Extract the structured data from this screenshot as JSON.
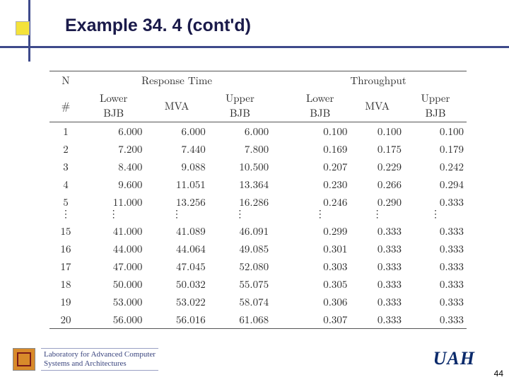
{
  "title": "Example 34. 4 (cont'd)",
  "decor": {
    "square_color": "#f4e23a",
    "line_color": "#3e4a8b",
    "title_color": "#1a1a4a"
  },
  "table": {
    "head": {
      "n": "N",
      "rt": "Response Time",
      "tp": "Throughput",
      "hash": "#",
      "sub": {
        "lower_bjb": "Lower\nBJB",
        "mva": "MVA",
        "upper_bjb": "Upper\nBJB"
      }
    },
    "rows_top": [
      {
        "n": "1",
        "rt_l": "6.000",
        "rt_m": "6.000",
        "rt_u": "6.000",
        "tp_l": "0.100",
        "tp_m": "0.100",
        "tp_u": "0.100"
      },
      {
        "n": "2",
        "rt_l": "7.200",
        "rt_m": "7.440",
        "rt_u": "7.800",
        "tp_l": "0.169",
        "tp_m": "0.175",
        "tp_u": "0.179"
      },
      {
        "n": "3",
        "rt_l": "8.400",
        "rt_m": "9.088",
        "rt_u": "10.500",
        "tp_l": "0.207",
        "tp_m": "0.229",
        "tp_u": "0.242"
      },
      {
        "n": "4",
        "rt_l": "9.600",
        "rt_m": "11.051",
        "rt_u": "13.364",
        "tp_l": "0.230",
        "tp_m": "0.266",
        "tp_u": "0.294"
      },
      {
        "n": "5",
        "rt_l": "11.000",
        "rt_m": "13.256",
        "rt_u": "16.286",
        "tp_l": "0.246",
        "tp_m": "0.290",
        "tp_u": "0.333"
      }
    ],
    "rows_bottom": [
      {
        "n": "15",
        "rt_l": "41.000",
        "rt_m": "41.089",
        "rt_u": "46.091",
        "tp_l": "0.299",
        "tp_m": "0.333",
        "tp_u": "0.333"
      },
      {
        "n": "16",
        "rt_l": "44.000",
        "rt_m": "44.064",
        "rt_u": "49.085",
        "tp_l": "0.301",
        "tp_m": "0.333",
        "tp_u": "0.333"
      },
      {
        "n": "17",
        "rt_l": "47.000",
        "rt_m": "47.045",
        "rt_u": "52.080",
        "tp_l": "0.303",
        "tp_m": "0.333",
        "tp_u": "0.333"
      },
      {
        "n": "18",
        "rt_l": "50.000",
        "rt_m": "50.032",
        "rt_u": "55.075",
        "tp_l": "0.305",
        "tp_m": "0.333",
        "tp_u": "0.333"
      },
      {
        "n": "19",
        "rt_l": "53.000",
        "rt_m": "53.022",
        "rt_u": "58.074",
        "tp_l": "0.306",
        "tp_m": "0.333",
        "tp_u": "0.333"
      },
      {
        "n": "20",
        "rt_l": "56.000",
        "rt_m": "56.016",
        "rt_u": "61.068",
        "tp_l": "0.307",
        "tp_m": "0.333",
        "tp_u": "0.333"
      }
    ],
    "border_color": "#555555",
    "text_color": "#2a2a2a",
    "fontsize": 15
  },
  "footer": {
    "lab_line1": "Laboratory for Advanced Computer",
    "lab_line2": "Systems and Architectures",
    "lab_text_color": "#39447e",
    "icon_bg": "#d88a2a",
    "uah": "UAH",
    "uah_color": "#0a2a6b",
    "page_no": "44"
  }
}
